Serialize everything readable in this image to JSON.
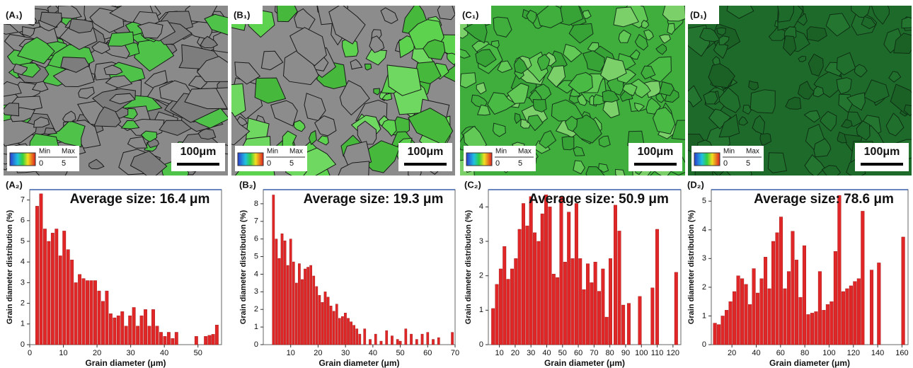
{
  "micrographs": [
    {
      "label": "(A₁)",
      "legend_min": "Min",
      "legend_max": "Max",
      "min_value": "0",
      "max_value": "5",
      "scale_bar": "100μm"
    },
    {
      "label": "(B₁)",
      "legend_min": "Min",
      "legend_max": "Max",
      "min_value": "0",
      "max_value": "5",
      "scale_bar": "100μm"
    },
    {
      "label": "(C₁)",
      "legend_min": "Min",
      "legend_max": "Max",
      "min_value": "0",
      "max_value": "5",
      "scale_bar": "100μm"
    },
    {
      "label": "(D₁)",
      "legend_min": "Min",
      "legend_max": "Max",
      "min_value": "0",
      "max_value": "5",
      "scale_bar": "100μm"
    }
  ],
  "chart_data": [
    {
      "type": "bar",
      "panel_label": "(A₂)",
      "title": "Average size: 16.4 μm",
      "x_label": "Grain diameter (μm)",
      "y_label": "Grain diameter distribution (%)",
      "color": "#e02626",
      "x": [
        2.2,
        3.35,
        4.5,
        5.65,
        6.8,
        7.95,
        9.1,
        10.25,
        11.4,
        12.55,
        13.7,
        14.85,
        16.0,
        17.15,
        18.3,
        19.45,
        20.6,
        21.75,
        22.9,
        24.05,
        25.2,
        26.35,
        27.5,
        28.65,
        29.8,
        30.95,
        32.1,
        33.25,
        34.4,
        35.55,
        36.7,
        37.85,
        39.0,
        40.15,
        41.3,
        42.45,
        43.6,
        49.5,
        52.3,
        53.4,
        54.5,
        55.6
      ],
      "values": [
        6.7,
        7.3,
        5.6,
        5.0,
        5.4,
        5.6,
        4.3,
        5.5,
        4.6,
        4.1,
        3.0,
        3.4,
        3.2,
        3.1,
        3.1,
        3.1,
        2.6,
        2.1,
        2.6,
        1.5,
        1.3,
        1.4,
        1.6,
        0.9,
        1.4,
        1.8,
        0.9,
        1.4,
        1.7,
        0.9,
        1.7,
        0.9,
        0.6,
        0.4,
        0.6,
        0.3,
        0.6,
        0.4,
        0.4,
        0.45,
        0.5,
        0.95
      ],
      "xlim": [
        0,
        57
      ],
      "xticks": [
        0,
        10,
        20,
        30,
        40,
        50
      ],
      "ylim": [
        0,
        7.5
      ],
      "yticks": [
        0,
        1,
        2,
        3,
        4,
        5,
        6,
        7
      ]
    },
    {
      "type": "bar",
      "panel_label": "(B₂)",
      "title": "Average size: 19.3 μm",
      "x_label": "Grain diameter (μm)",
      "y_label": "Grain diameter distribution (%)",
      "color": "#e02626",
      "x": [
        3.7,
        4.75,
        5.8,
        6.85,
        7.9,
        8.95,
        10,
        11.05,
        12.1,
        13.15,
        14.2,
        15.25,
        16.3,
        17.35,
        18.4,
        19.45,
        20.5,
        21.55,
        22.6,
        23.65,
        24.7,
        25.75,
        26.8,
        27.85,
        28.9,
        29.95,
        31,
        32.05,
        33.1,
        34.15,
        35.2,
        37,
        39,
        41,
        43,
        45,
        47,
        49,
        50,
        52,
        54,
        56,
        58,
        60,
        62,
        64,
        69
      ],
      "values": [
        8.5,
        6.0,
        4.9,
        6.3,
        5.9,
        4.5,
        6.0,
        4.7,
        3.5,
        4.6,
        3.7,
        4.3,
        4.4,
        4.5,
        3.9,
        3.3,
        2.8,
        2.4,
        3.0,
        2.7,
        2.2,
        1.9,
        2.3,
        1.5,
        1.6,
        1.8,
        1.5,
        1.3,
        1.1,
        0.9,
        0.6,
        0.9,
        0.3,
        0.6,
        0.2,
        0.8,
        0.5,
        0.3,
        0.2,
        0.9,
        0.6,
        0.3,
        0.6,
        0.7,
        0.3,
        0.4,
        0.7
      ],
      "xlim": [
        0,
        70
      ],
      "xticks": [
        10,
        20,
        30,
        40,
        50,
        60,
        70
      ],
      "ylim": [
        0,
        8.8
      ],
      "yticks": [
        0,
        1,
        2,
        3,
        4,
        5,
        6,
        7,
        8
      ]
    },
    {
      "type": "bar",
      "panel_label": "(C₂)",
      "title": "Average size: 50.9 μm",
      "x_label": "Grain diameter (μm)",
      "y_label": "Grain diameter distribution (%)",
      "color": "#e02626",
      "x": [
        6,
        8.4,
        10.8,
        13.2,
        15.6,
        18,
        20.4,
        22.8,
        25.2,
        27.6,
        30,
        32.4,
        34.8,
        37.2,
        39.6,
        42,
        44.4,
        46.8,
        49.2,
        51.6,
        54,
        56.4,
        58.8,
        61.2,
        63.6,
        66,
        68.4,
        70.8,
        73.2,
        75.6,
        78,
        80.4,
        83.5,
        86,
        88.5,
        92,
        99,
        107,
        110,
        122
      ],
      "values": [
        1.05,
        1.75,
        2.2,
        2.85,
        1.9,
        2.2,
        2.5,
        3.35,
        4.1,
        3.45,
        4.3,
        3.25,
        3.0,
        3.8,
        4.35,
        4.0,
        2.05,
        1.95,
        4.3,
        2.4,
        3.85,
        2.5,
        4.1,
        2.5,
        1.6,
        2.35,
        1.8,
        2.4,
        1.55,
        2.2,
        0.8,
        2.5,
        4.05,
        3.3,
        1.15,
        1.2,
        1.4,
        1.65,
        3.35,
        2.1
      ],
      "xlim": [
        3,
        125
      ],
      "xticks": [
        10,
        20,
        30,
        40,
        50,
        60,
        70,
        80,
        90,
        100,
        110,
        120
      ],
      "ylim": [
        0,
        4.5
      ],
      "yticks": [
        0,
        1,
        2,
        3,
        4
      ]
    },
    {
      "type": "bar",
      "panel_label": "(D₂)",
      "title": "Average size: 78.6 μm",
      "x_label": "Grain diameter (μm)",
      "y_label": "Grain diameter distribution (%)",
      "color": "#e02626",
      "x": [
        6,
        9.2,
        12.4,
        15.6,
        18.8,
        22,
        25.2,
        28.4,
        31.6,
        34.8,
        38,
        41.2,
        44.4,
        47.6,
        50.8,
        54,
        57.2,
        60.4,
        63.6,
        66.8,
        70,
        73.2,
        76.4,
        79.6,
        82.8,
        86,
        89.2,
        92.4,
        95.6,
        98.8,
        102,
        105.2,
        108.4,
        111.6,
        114.8,
        118,
        121.2,
        124.4,
        127.6,
        135,
        141,
        161
      ],
      "values": [
        0.75,
        0.7,
        1.0,
        1.2,
        1.5,
        1.85,
        2.4,
        2.3,
        2.1,
        1.4,
        2.65,
        1.8,
        2.3,
        3.05,
        1.95,
        3.6,
        3.9,
        4.45,
        1.95,
        2.55,
        3.95,
        2.95,
        1.65,
        3.45,
        1.05,
        1.1,
        1.15,
        2.55,
        1.2,
        1.4,
        1.5,
        3.25,
        5.2,
        1.85,
        1.95,
        2.05,
        2.2,
        2.3,
        4.65,
        2.6,
        2.85,
        3.75
      ],
      "xlim": [
        3,
        165
      ],
      "xticks": [
        20,
        40,
        60,
        80,
        100,
        120,
        140,
        160
      ],
      "ylim": [
        0,
        5.4
      ],
      "yticks": [
        0,
        1,
        2,
        3,
        4,
        5
      ]
    }
  ]
}
